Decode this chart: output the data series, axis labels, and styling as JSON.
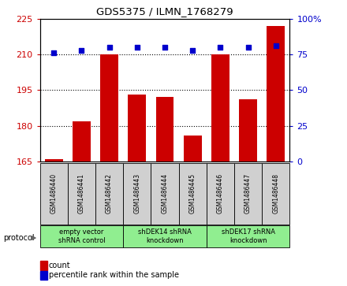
{
  "title": "GDS5375 / ILMN_1768279",
  "samples": [
    "GSM1486440",
    "GSM1486441",
    "GSM1486442",
    "GSM1486443",
    "GSM1486444",
    "GSM1486445",
    "GSM1486446",
    "GSM1486447",
    "GSM1486448"
  ],
  "counts": [
    166,
    182,
    210,
    193,
    192,
    176,
    210,
    191,
    222
  ],
  "percentile_ranks": [
    76,
    78,
    80,
    80,
    80,
    78,
    80,
    80,
    81
  ],
  "ylim_left": [
    165,
    225
  ],
  "ylim_right": [
    0,
    100
  ],
  "yticks_left": [
    165,
    180,
    195,
    210,
    225
  ],
  "yticks_right": [
    0,
    25,
    50,
    75,
    100
  ],
  "bar_color": "#cc0000",
  "dot_color": "#0000cc",
  "groups": [
    {
      "label": "empty vector\nshRNA control",
      "start": 0,
      "end": 3,
      "color": "#90ee90"
    },
    {
      "label": "shDEK14 shRNA\nknockdown",
      "start": 3,
      "end": 6,
      "color": "#90ee90"
    },
    {
      "label": "shDEK17 shRNA\nknockdown",
      "start": 6,
      "end": 9,
      "color": "#90ee90"
    }
  ],
  "legend_count_label": "count",
  "legend_pct_label": "percentile rank within the sample",
  "protocol_label": "protocol",
  "grid_lines": [
    180,
    195,
    210
  ],
  "fig_width": 4.4,
  "fig_height": 3.63,
  "dpi": 100
}
